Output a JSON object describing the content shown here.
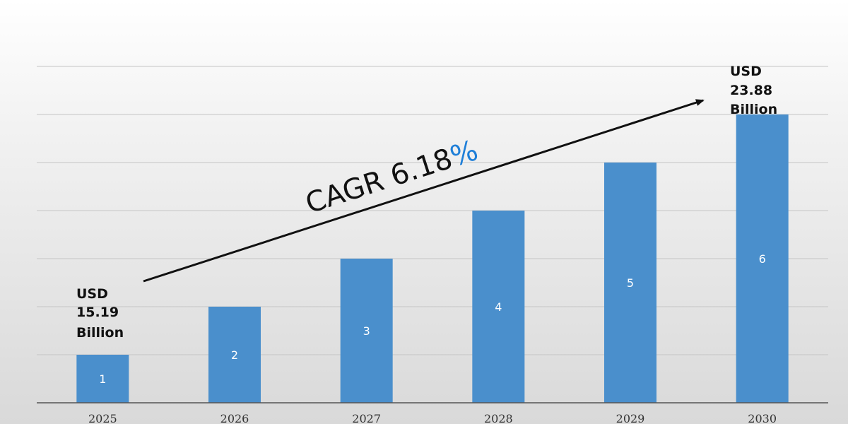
{
  "chart_data": {
    "type": "bar",
    "categories": [
      "2025",
      "2026",
      "2027",
      "2028",
      "2029",
      "2030"
    ],
    "values": [
      1,
      2,
      3,
      4,
      5,
      6
    ],
    "bar_labels": [
      "1",
      "2",
      "3",
      "4",
      "5",
      "6"
    ],
    "ylim": [
      0,
      7
    ],
    "grid": true,
    "bar_color": "#4a8fcc",
    "annotations": {
      "start": [
        "USD",
        "15.19",
        "Billion"
      ],
      "end": [
        "USD",
        "23.88",
        "Billion"
      ],
      "cagr_label": "CAGR 6.18",
      "cagr_symbol": "%",
      "cagr_symbol_color": "#1f7fd8"
    }
  }
}
